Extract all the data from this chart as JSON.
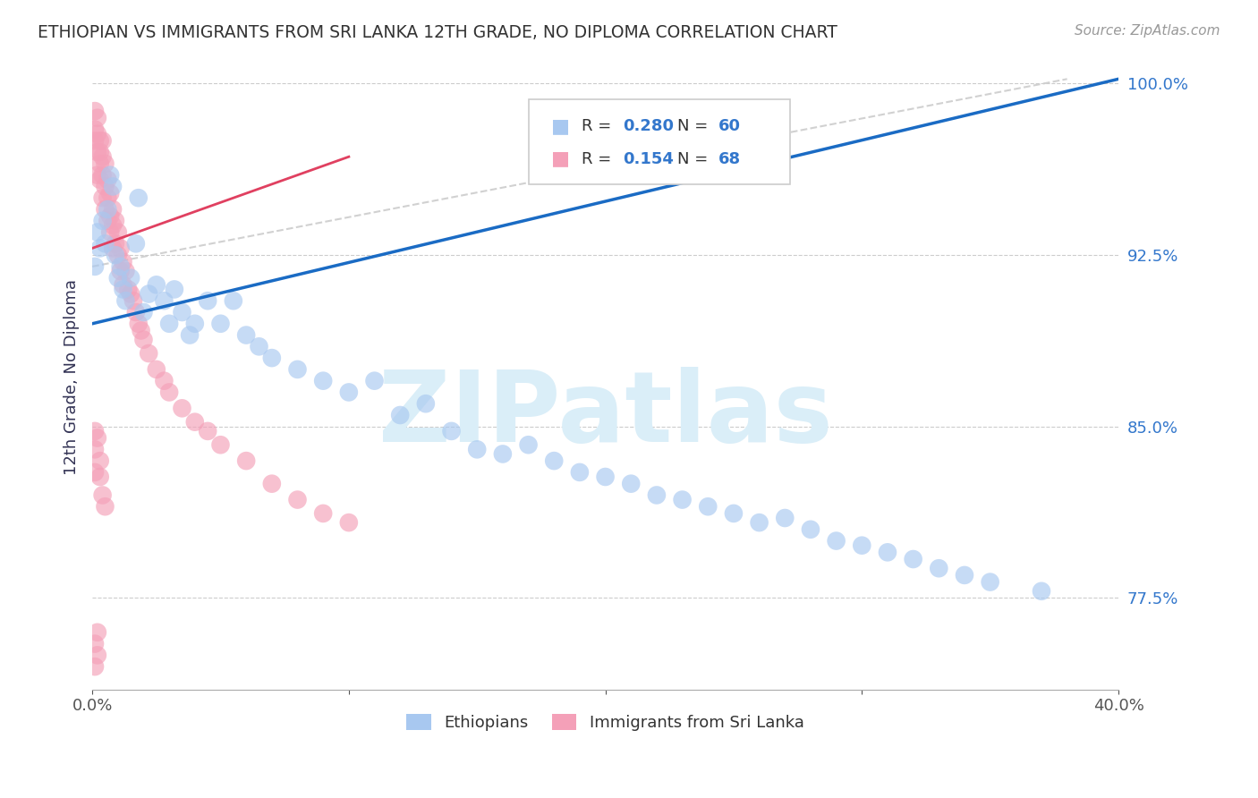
{
  "title": "ETHIOPIAN VS IMMIGRANTS FROM SRI LANKA 12TH GRADE, NO DIPLOMA CORRELATION CHART",
  "source_text": "Source: ZipAtlas.com",
  "ylabel": "12th Grade, No Diploma",
  "xlim": [
    0.0,
    0.4
  ],
  "ylim": [
    0.735,
    1.008
  ],
  "ytick_labels_right": [
    "77.5%",
    "85.0%",
    "92.5%",
    "100.0%"
  ],
  "ytick_positions_right": [
    0.775,
    0.85,
    0.925,
    1.0
  ],
  "blue_color": "#A8C8F0",
  "pink_color": "#F4A0B8",
  "blue_line_color": "#1A6BC4",
  "pink_line_color": "#E04060",
  "dashed_color": "#CCCCCC",
  "watermark_color": "#DAEEF8",
  "blue_scatter_x": [
    0.001,
    0.002,
    0.003,
    0.004,
    0.005,
    0.006,
    0.007,
    0.008,
    0.009,
    0.01,
    0.011,
    0.012,
    0.013,
    0.015,
    0.017,
    0.018,
    0.02,
    0.022,
    0.025,
    0.028,
    0.03,
    0.032,
    0.035,
    0.038,
    0.04,
    0.045,
    0.05,
    0.055,
    0.06,
    0.065,
    0.07,
    0.08,
    0.09,
    0.1,
    0.11,
    0.12,
    0.13,
    0.14,
    0.15,
    0.16,
    0.17,
    0.18,
    0.19,
    0.2,
    0.21,
    0.22,
    0.23,
    0.24,
    0.25,
    0.26,
    0.27,
    0.28,
    0.29,
    0.3,
    0.31,
    0.32,
    0.33,
    0.34,
    0.35,
    0.37
  ],
  "blue_scatter_y": [
    0.92,
    0.935,
    0.928,
    0.94,
    0.93,
    0.945,
    0.96,
    0.955,
    0.925,
    0.915,
    0.92,
    0.91,
    0.905,
    0.915,
    0.93,
    0.95,
    0.9,
    0.908,
    0.912,
    0.905,
    0.895,
    0.91,
    0.9,
    0.89,
    0.895,
    0.905,
    0.895,
    0.905,
    0.89,
    0.885,
    0.88,
    0.875,
    0.87,
    0.865,
    0.87,
    0.855,
    0.86,
    0.848,
    0.84,
    0.838,
    0.842,
    0.835,
    0.83,
    0.828,
    0.825,
    0.82,
    0.818,
    0.815,
    0.812,
    0.808,
    0.81,
    0.805,
    0.8,
    0.798,
    0.795,
    0.792,
    0.788,
    0.785,
    0.782,
    0.778
  ],
  "pink_scatter_x": [
    0.001,
    0.001,
    0.001,
    0.002,
    0.002,
    0.002,
    0.002,
    0.003,
    0.003,
    0.003,
    0.003,
    0.004,
    0.004,
    0.004,
    0.004,
    0.005,
    0.005,
    0.005,
    0.006,
    0.006,
    0.006,
    0.007,
    0.007,
    0.007,
    0.008,
    0.008,
    0.008,
    0.009,
    0.009,
    0.01,
    0.01,
    0.011,
    0.011,
    0.012,
    0.012,
    0.013,
    0.014,
    0.015,
    0.016,
    0.017,
    0.018,
    0.019,
    0.02,
    0.022,
    0.025,
    0.028,
    0.03,
    0.035,
    0.04,
    0.045,
    0.05,
    0.06,
    0.07,
    0.08,
    0.09,
    0.1,
    0.001,
    0.001,
    0.002,
    0.002,
    0.003,
    0.003,
    0.004,
    0.005,
    0.001,
    0.001,
    0.001,
    0.002
  ],
  "pink_scatter_y": [
    0.98,
    0.975,
    0.988,
    0.978,
    0.97,
    0.96,
    0.985,
    0.975,
    0.965,
    0.97,
    0.958,
    0.968,
    0.96,
    0.975,
    0.95,
    0.965,
    0.955,
    0.945,
    0.958,
    0.95,
    0.94,
    0.952,
    0.942,
    0.935,
    0.945,
    0.938,
    0.928,
    0.94,
    0.93,
    0.935,
    0.925,
    0.928,
    0.918,
    0.922,
    0.912,
    0.918,
    0.91,
    0.908,
    0.905,
    0.9,
    0.895,
    0.892,
    0.888,
    0.882,
    0.875,
    0.87,
    0.865,
    0.858,
    0.852,
    0.848,
    0.842,
    0.835,
    0.825,
    0.818,
    0.812,
    0.808,
    0.745,
    0.755,
    0.76,
    0.75,
    0.835,
    0.828,
    0.82,
    0.815,
    0.84,
    0.83,
    0.848,
    0.845
  ],
  "blue_trend_x": [
    0.0,
    0.4
  ],
  "blue_trend_y": [
    0.895,
    1.002
  ],
  "pink_trend_x": [
    0.0,
    0.1
  ],
  "pink_trend_y": [
    0.928,
    0.968
  ],
  "dashed_trend_x": [
    0.0,
    0.38
  ],
  "dashed_trend_y": [
    0.92,
    1.002
  ]
}
